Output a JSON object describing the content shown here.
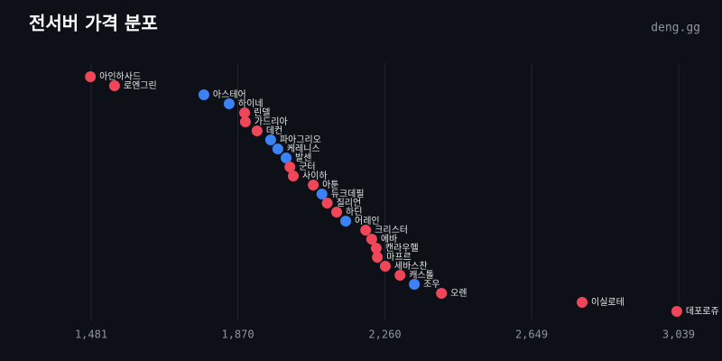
{
  "chart_data": {
    "type": "dot",
    "title": "전서버 가격 분포",
    "brand": "deng.gg",
    "categories": [
      "아인하사드",
      "로엔그린",
      "아스테어",
      "하이네",
      "린델",
      "가드리아",
      "데컨",
      "파아그리오",
      "케레니스",
      "발센",
      "군터",
      "사이하",
      "아툰",
      "듀크데필",
      "질리언",
      "하딘",
      "어레인",
      "크리스터",
      "에바",
      "캔라우헬",
      "마프르",
      "세바스찬",
      "캐스톨",
      "조우",
      "오렌",
      "이실로테",
      "데포로쥬"
    ],
    "values": [
      1479,
      1543,
      1780,
      1847,
      1888,
      1890,
      1921,
      1957,
      1976,
      1998,
      2008,
      2017,
      2070,
      2093,
      2107,
      2132,
      2156,
      2209,
      2225,
      2237,
      2240,
      2261,
      2300,
      2338,
      2410,
      2783,
      3034
    ],
    "colors": [
      "#f0465a",
      "#f0465a",
      "#3b82f6",
      "#3b82f6",
      "#f0465a",
      "#f0465a",
      "#f0465a",
      "#3b82f6",
      "#3b82f6",
      "#3b82f6",
      "#f0465a",
      "#f0465a",
      "#f0465a",
      "#3b82f6",
      "#f0465a",
      "#f0465a",
      "#3b82f6",
      "#f0465a",
      "#f0465a",
      "#f0465a",
      "#f0465a",
      "#f0465a",
      "#f0465a",
      "#3b82f6",
      "#f0465a",
      "#f0465a",
      "#f0465a"
    ],
    "xlim": [
      1335,
      3130
    ],
    "xticks": [
      {
        "value": 1481,
        "label": "1,481"
      },
      {
        "value": 1870,
        "label": "1,870"
      },
      {
        "value": 2260,
        "label": "2,260"
      },
      {
        "value": 2649,
        "label": "2,649"
      },
      {
        "value": 3039,
        "label": "3,039"
      }
    ],
    "grid": true
  }
}
